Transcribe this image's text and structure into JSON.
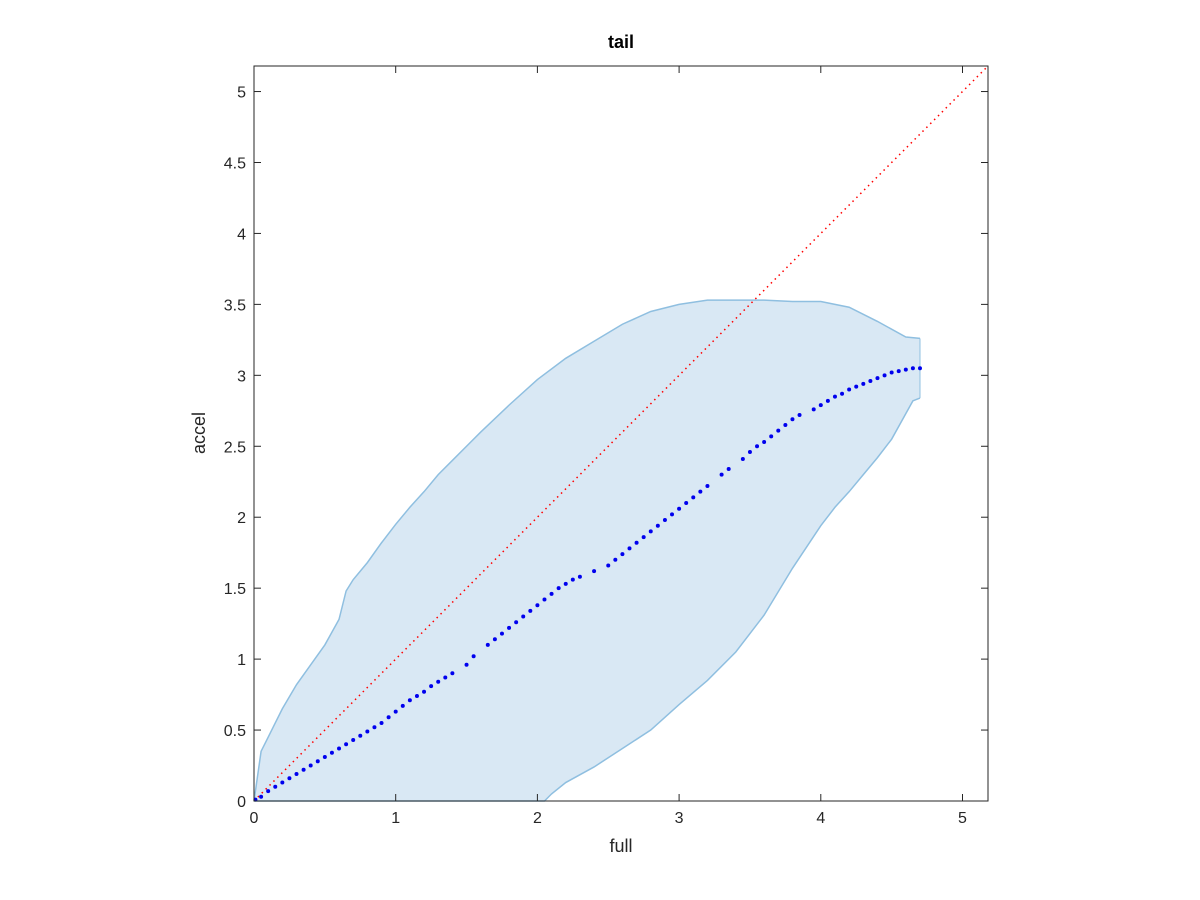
{
  "chart_data": {
    "type": "scatter",
    "title": "tail",
    "xlabel": "full",
    "ylabel": "accel",
    "xlim": [
      0,
      5.18
    ],
    "ylim": [
      0,
      5.18
    ],
    "xticks": [
      "0",
      "1",
      "2",
      "3",
      "4",
      "5"
    ],
    "yticks": [
      "0",
      "0.5",
      "1",
      "1.5",
      "2",
      "2.5",
      "3",
      "3.5",
      "4",
      "4.5",
      "5"
    ],
    "grid": false,
    "colors": {
      "band_fill": "#d9e8f4",
      "band_edge": "#8fbfe0",
      "points": "#0000ee",
      "reference": "#ff0000",
      "axes": "#262626"
    },
    "reference_line": {
      "style": "dotted",
      "from": [
        0,
        0
      ],
      "to": [
        5.18,
        5.18
      ]
    },
    "series": [
      {
        "role": "mean",
        "x": [
          0.01,
          0.05,
          0.1,
          0.15,
          0.2,
          0.25,
          0.3,
          0.35,
          0.4,
          0.45,
          0.5,
          0.55,
          0.6,
          0.65,
          0.7,
          0.75,
          0.8,
          0.85,
          0.9,
          0.95,
          1.0,
          1.05,
          1.1,
          1.15,
          1.2,
          1.25,
          1.3,
          1.35,
          1.4,
          1.5,
          1.55,
          1.65,
          1.7,
          1.75,
          1.8,
          1.85,
          1.9,
          1.95,
          2.0,
          2.05,
          2.1,
          2.15,
          2.2,
          2.25,
          2.3,
          2.4,
          2.5,
          2.55,
          2.6,
          2.65,
          2.7,
          2.75,
          2.8,
          2.85,
          2.9,
          2.95,
          3.0,
          3.05,
          3.1,
          3.15,
          3.2,
          3.3,
          3.35,
          3.45,
          3.5,
          3.55,
          3.6,
          3.65,
          3.7,
          3.75,
          3.8,
          3.85,
          3.95,
          4.0,
          4.05,
          4.1,
          4.15,
          4.2,
          4.25,
          4.3,
          4.35,
          4.4,
          4.45,
          4.5,
          4.55,
          4.6,
          4.65,
          4.7
        ],
        "y": [
          0.01,
          0.03,
          0.07,
          0.1,
          0.13,
          0.16,
          0.19,
          0.22,
          0.25,
          0.28,
          0.31,
          0.34,
          0.37,
          0.4,
          0.43,
          0.46,
          0.49,
          0.52,
          0.55,
          0.59,
          0.63,
          0.67,
          0.71,
          0.74,
          0.77,
          0.81,
          0.84,
          0.87,
          0.9,
          0.96,
          1.02,
          1.1,
          1.14,
          1.18,
          1.22,
          1.26,
          1.3,
          1.34,
          1.38,
          1.42,
          1.46,
          1.5,
          1.53,
          1.56,
          1.58,
          1.62,
          1.66,
          1.7,
          1.74,
          1.78,
          1.82,
          1.86,
          1.9,
          1.94,
          1.98,
          2.02,
          2.06,
          2.1,
          2.14,
          2.18,
          2.22,
          2.3,
          2.34,
          2.41,
          2.46,
          2.5,
          2.53,
          2.57,
          2.61,
          2.65,
          2.69,
          2.72,
          2.76,
          2.79,
          2.82,
          2.85,
          2.87,
          2.9,
          2.92,
          2.94,
          2.96,
          2.98,
          3.0,
          3.02,
          3.03,
          3.04,
          3.05,
          3.05
        ]
      },
      {
        "role": "upper-bound",
        "x": [
          0,
          0.05,
          0.1,
          0.15,
          0.2,
          0.3,
          0.4,
          0.5,
          0.6,
          0.65,
          0.7,
          0.8,
          0.9,
          1.0,
          1.1,
          1.2,
          1.3,
          1.4,
          1.5,
          1.6,
          1.8,
          2.0,
          2.2,
          2.4,
          2.6,
          2.8,
          3.0,
          3.2,
          3.4,
          3.6,
          3.8,
          4.0,
          4.2,
          4.4,
          4.6,
          4.7
        ],
        "y": [
          0,
          0.35,
          0.45,
          0.55,
          0.65,
          0.82,
          0.96,
          1.1,
          1.28,
          1.48,
          1.56,
          1.68,
          1.82,
          1.95,
          2.07,
          2.18,
          2.3,
          2.4,
          2.5,
          2.6,
          2.79,
          2.97,
          3.12,
          3.24,
          3.36,
          3.45,
          3.5,
          3.53,
          3.53,
          3.53,
          3.52,
          3.52,
          3.48,
          3.38,
          3.27,
          3.26
        ]
      },
      {
        "role": "lower-bound",
        "x": [
          0,
          0.5,
          1.0,
          1.5,
          2.0,
          2.05,
          2.1,
          2.2,
          2.4,
          2.6,
          2.8,
          3.0,
          3.2,
          3.4,
          3.6,
          3.8,
          4.0,
          4.1,
          4.2,
          4.3,
          4.4,
          4.5,
          4.6,
          4.65,
          4.7
        ],
        "y": [
          0,
          0,
          0,
          0,
          0,
          0,
          0.05,
          0.13,
          0.24,
          0.37,
          0.5,
          0.68,
          0.85,
          1.05,
          1.31,
          1.64,
          1.94,
          2.07,
          2.18,
          2.3,
          2.42,
          2.55,
          2.73,
          2.82,
          2.84
        ]
      }
    ]
  }
}
